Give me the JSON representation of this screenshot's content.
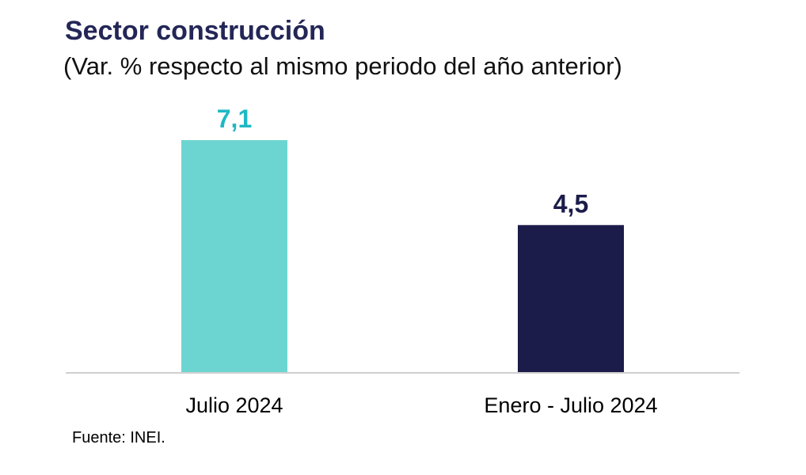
{
  "chart_data": {
    "type": "bar",
    "title": "Sector construcción",
    "subtitle": "(Var. % respecto al mismo periodo del año anterior)",
    "categories": [
      "Julio 2024",
      "Enero - Julio 2024"
    ],
    "values": [
      7.1,
      4.5
    ],
    "value_labels": [
      "7,1",
      "4,5"
    ],
    "bar_colors": [
      "#6dd5d1",
      "#1b1c4a"
    ],
    "label_colors": [
      "#1fb8c4",
      "#1b1c4a"
    ],
    "xlabel": "",
    "ylabel": "",
    "ylim": [
      0,
      7.1
    ],
    "grid": false,
    "legend": "none"
  },
  "source": "Fuente: INEI."
}
